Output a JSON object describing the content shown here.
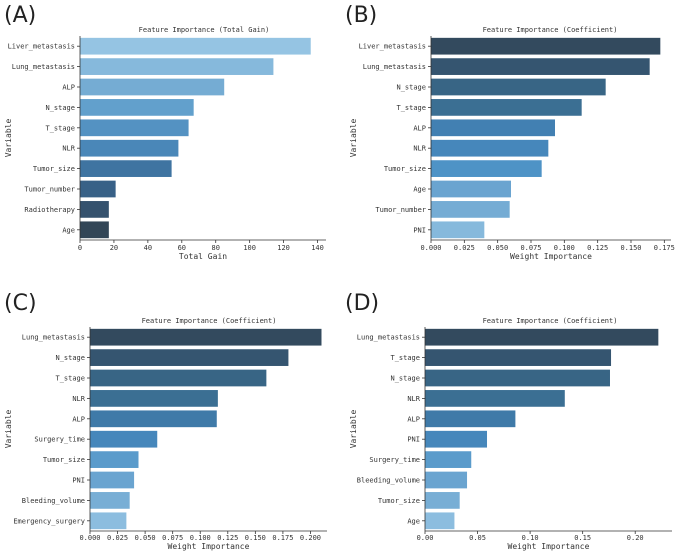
{
  "chart_data": [
    {
      "letter": "(A)",
      "type": "bar",
      "orientation": "horizontal",
      "title": "Feature Importance (Total Gain)",
      "xlabel": "Total Gain",
      "ylabel": "Variable",
      "xlim": [
        0,
        145
      ],
      "ticks": [
        0,
        20,
        40,
        60,
        80,
        100,
        120,
        140
      ],
      "tick_labels": [
        "0",
        "20",
        "40",
        "60",
        "80",
        "100",
        "120",
        "140"
      ],
      "categories": [
        "Liver_metastasis",
        "Lung_metastasis",
        "ALP",
        "N_stage",
        "T_stage",
        "NLR",
        "Tumor_size",
        "Tumor_number",
        "Radiotherapy",
        "Age"
      ],
      "values": [
        136,
        114,
        85,
        67,
        64,
        58,
        54,
        21,
        17,
        17
      ],
      "colors": [
        "#95c4e3",
        "#86b9dc",
        "#75acd3",
        "#62a0cc",
        "#5492c2",
        "#4a87b8",
        "#3f74a1",
        "#386187",
        "#35526e",
        "#324657"
      ]
    },
    {
      "letter": "(B)",
      "type": "bar",
      "orientation": "horizontal",
      "title": "Feature Importance (Coefficient)",
      "xlabel": "Weight Importance",
      "ylabel": "Variable",
      "xlim": [
        0,
        0.18
      ],
      "ticks": [
        0,
        0.025,
        0.05,
        0.075,
        0.1,
        0.125,
        0.15,
        0.175
      ],
      "tick_labels": [
        "0.000",
        "0.025",
        "0.050",
        "0.075",
        "0.100",
        "0.125",
        "0.150",
        "0.175"
      ],
      "categories": [
        "Liver_metastasis",
        "Lung_metastasis",
        "N_stage",
        "T_stage",
        "ALP",
        "NLR",
        "Tumor_size",
        "Age",
        "Tumor_number",
        "PNI"
      ],
      "values": [
        0.172,
        0.164,
        0.131,
        0.113,
        0.093,
        0.088,
        0.083,
        0.06,
        0.059,
        0.04
      ],
      "colors": [
        "#334a5e",
        "#355570",
        "#386585",
        "#3b6f93",
        "#4280b2",
        "#4687bb",
        "#4e93c6",
        "#6aa4d0",
        "#75acd4",
        "#86b9dc"
      ]
    },
    {
      "letter": "(C)",
      "type": "bar",
      "orientation": "horizontal",
      "title": "Feature Importance (Coefficient)",
      "xlabel": "Weight Importance",
      "ylabel": "Variable",
      "xlim": [
        0,
        0.215
      ],
      "ticks": [
        0,
        0.025,
        0.05,
        0.075,
        0.1,
        0.125,
        0.15,
        0.175,
        0.2
      ],
      "tick_labels": [
        "0.000",
        "0.025",
        "0.050",
        "0.075",
        "0.100",
        "0.125",
        "0.150",
        "0.175",
        "0.200"
      ],
      "categories": [
        "Lung_metastasis",
        "N_stage",
        "T_stage",
        "NLR",
        "ALP",
        "Surgery_time",
        "Tumor_size",
        "PNI",
        "Bleeding_volume",
        "Emergency_surgery"
      ],
      "values": [
        0.21,
        0.18,
        0.16,
        0.116,
        0.115,
        0.061,
        0.044,
        0.04,
        0.036,
        0.033
      ],
      "colors": [
        "#334a5e",
        "#355570",
        "#386585",
        "#3b6f93",
        "#3f7aa8",
        "#4687bb",
        "#5a9bcb",
        "#6aa4d0",
        "#78aed5",
        "#8cbddf"
      ]
    },
    {
      "letter": "(D)",
      "type": "bar",
      "orientation": "horizontal",
      "title": "Feature Importance (Coefficient)",
      "xlabel": "Weight Importance",
      "ylabel": "Variable",
      "xlim": [
        0,
        0.235
      ],
      "ticks": [
        0,
        0.05,
        0.1,
        0.15,
        0.2
      ],
      "tick_labels": [
        "0.00",
        "0.05",
        "0.10",
        "0.15",
        "0.20"
      ],
      "categories": [
        "Lung_metastasis",
        "T_stage",
        "N_stage",
        "NLR",
        "ALP",
        "PNI",
        "Surgery_time",
        "Bleeding_volume",
        "Tumor_size",
        "Age"
      ],
      "values": [
        0.222,
        0.177,
        0.176,
        0.133,
        0.086,
        0.059,
        0.044,
        0.04,
        0.033,
        0.028
      ],
      "colors": [
        "#334a5e",
        "#355570",
        "#386585",
        "#3b6f93",
        "#3f7aa8",
        "#4687bb",
        "#5a9bcb",
        "#6aa4d0",
        "#78aed5",
        "#8cbddf"
      ]
    }
  ]
}
